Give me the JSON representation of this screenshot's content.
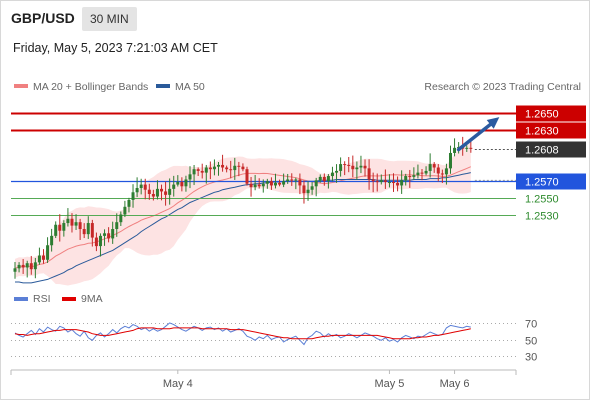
{
  "header": {
    "pair": "GBP/USD",
    "timeframe": "30 MIN",
    "timestamp": "Friday, May 5, 2023 7:21:03 AM CET"
  },
  "credit": "Research © 2023 Trading Central",
  "colors": {
    "resistance": "#cc0000",
    "support_main": "#2255dd",
    "support_minor": "#55aa55",
    "price_label": "#333333",
    "ma20": "#f08080",
    "ma50": "#2a5a9a",
    "bands_fill": "#fde3e3",
    "candle_up": "#2e7d32",
    "candle_down": "#c62828",
    "rsi": "#5b7fd6",
    "rsi_ma": "#e00000",
    "arrow": "#2a5aa0"
  },
  "chart_data": [
    {
      "type": "candlestick",
      "title": "GBP/USD",
      "legend": [
        {
          "name": "MA 20 + Bollinger Bands",
          "color": "#f08080"
        },
        {
          "name": "MA 50",
          "color": "#2a5a9a"
        }
      ],
      "ylim": [
        1.2452,
        1.2665
      ],
      "x_ticks": [
        {
          "label": "May 4",
          "index": 40
        },
        {
          "label": "May 5",
          "index": 92
        },
        {
          "label": "May 6",
          "index": 108
        }
      ],
      "last_price": 1.2608,
      "levels": [
        {
          "value": 1.265,
          "label": "1.2650",
          "kind": "resistance"
        },
        {
          "value": 1.263,
          "label": "1.2630",
          "kind": "resistance"
        },
        {
          "value": 1.2608,
          "label": "1.2608",
          "kind": "price"
        },
        {
          "value": 1.257,
          "label": "1.2570",
          "kind": "support_main"
        },
        {
          "value": 1.255,
          "label": "1.2550",
          "kind": "support_minor"
        },
        {
          "value": 1.253,
          "label": "1.2530",
          "kind": "support_minor"
        }
      ],
      "arrow": {
        "from": [
          109,
          1.2607
        ],
        "to": [
          119,
          1.2645
        ]
      },
      "closes": [
        1.2468,
        1.2472,
        1.2469,
        1.2474,
        1.2467,
        1.2475,
        1.2483,
        1.2478,
        1.2495,
        1.2506,
        1.2519,
        1.2512,
        1.2521,
        1.2526,
        1.2518,
        1.2522,
        1.2514,
        1.2508,
        1.2521,
        1.2504,
        1.2494,
        1.2506,
        1.2509,
        1.2503,
        1.2514,
        1.2522,
        1.2531,
        1.254,
        1.2548,
        1.2557,
        1.2562,
        1.2566,
        1.256,
        1.2555,
        1.2552,
        1.2561,
        1.2558,
        1.2554,
        1.2561,
        1.2566,
        1.2569,
        1.2564,
        1.2572,
        1.2578,
        1.2584,
        1.2582,
        1.258,
        1.2586,
        1.2584,
        1.2587,
        1.2589,
        1.2586,
        1.2584,
        1.2583,
        1.2588,
        1.2587,
        1.2584,
        1.2567,
        1.2563,
        1.2566,
        1.2564,
        1.2567,
        1.257,
        1.2565,
        1.2568,
        1.2566,
        1.257,
        1.2572,
        1.2571,
        1.2572,
        1.2565,
        1.2556,
        1.256,
        1.2564,
        1.2571,
        1.2575,
        1.257,
        1.2576,
        1.258,
        1.2582,
        1.259,
        1.2589,
        1.2588,
        1.2584,
        1.2586,
        1.2588,
        1.2585,
        1.2572,
        1.257,
        1.2569,
        1.2571,
        1.2569,
        1.2569,
        1.2568,
        1.2565,
        1.2571,
        1.2576,
        1.2575,
        1.2577,
        1.258,
        1.2579,
        1.2582,
        1.259,
        1.2586,
        1.2579,
        1.2578,
        1.2585,
        1.2603,
        1.2609,
        1.261,
        1.2608,
        1.2609,
        1.2608
      ],
      "ma50_values": [
        1.2452,
        1.2452,
        1.2451,
        1.2451,
        1.2451,
        1.2452,
        1.2453,
        1.2454,
        1.2455,
        1.2457,
        1.2459,
        1.2461,
        1.2463,
        1.2466,
        1.2468,
        1.2471,
        1.2473,
        1.2475,
        1.2477,
        1.2479,
        1.2481,
        1.2483,
        1.2485,
        1.2487,
        1.2489,
        1.2492,
        1.2495,
        1.2498,
        1.2501,
        1.2504,
        1.2507,
        1.2511,
        1.2514,
        1.2517,
        1.252,
        1.2523,
        1.2526,
        1.2528,
        1.2531,
        1.2534,
        1.2537,
        1.2539,
        1.2542,
        1.2545,
        1.2547,
        1.2549,
        1.2551,
        1.2553,
        1.2555,
        1.2557,
        1.2558,
        1.256,
        1.2561,
        1.2562,
        1.2563,
        1.2564,
        1.2565,
        1.2566,
        1.2566,
        1.2567,
        1.2567,
        1.2568,
        1.2568,
        1.2569,
        1.2569,
        1.2569,
        1.257,
        1.257,
        1.257,
        1.257,
        1.257,
        1.257,
        1.257,
        1.257,
        1.257,
        1.2571,
        1.2571,
        1.2571,
        1.2571,
        1.2572,
        1.2572,
        1.2572,
        1.2572,
        1.2572,
        1.2572,
        1.2572,
        1.2572,
        1.2572,
        1.2572,
        1.2571,
        1.2571,
        1.2571,
        1.2571,
        1.2571,
        1.2571,
        1.2571,
        1.2571,
        1.2571,
        1.2572,
        1.2572,
        1.2572,
        1.2572,
        1.2573,
        1.2573,
        1.2573,
        1.2574,
        1.2574,
        1.2575,
        1.2576,
        1.2577,
        1.2578,
        1.2579,
        1.258
      ]
    },
    {
      "type": "line",
      "title": "",
      "legend": [
        {
          "name": "RSI",
          "color": "#5b7fd6"
        },
        {
          "name": "9MA",
          "color": "#e00000"
        }
      ],
      "ylim": [
        18,
        82
      ],
      "y_ticks": [
        70,
        50,
        30
      ],
      "rsi_values": [
        58,
        55,
        53,
        57,
        61,
        56,
        63,
        59,
        65,
        62,
        60,
        66,
        64,
        59,
        62,
        57,
        54,
        60,
        52,
        49,
        55,
        58,
        53,
        57,
        62,
        58,
        63,
        66,
        64,
        68,
        66,
        62,
        64,
        60,
        63,
        60,
        62,
        66,
        70,
        68,
        65,
        62,
        60,
        63,
        66,
        64,
        61,
        64,
        65,
        62,
        64,
        60,
        63,
        59,
        61,
        63,
        60,
        54,
        52,
        49,
        53,
        51,
        55,
        50,
        52,
        53,
        47,
        50,
        52,
        54,
        49,
        44,
        52,
        55,
        60,
        58,
        53,
        57,
        54,
        56,
        52,
        54,
        57,
        55,
        52,
        55,
        58,
        56,
        54,
        51,
        49,
        52,
        48,
        50,
        47,
        52,
        55,
        53,
        51,
        54,
        53,
        56,
        59,
        57,
        55,
        56,
        64,
        67,
        66,
        65,
        64,
        66,
        65
      ],
      "ma9_values": [
        57,
        56,
        56,
        55,
        56,
        57,
        57,
        58,
        59,
        60,
        61,
        61,
        62,
        62,
        62,
        62,
        61,
        60,
        59,
        57,
        56,
        55,
        55,
        55,
        56,
        57,
        58,
        59,
        60,
        61,
        63,
        64,
        64,
        64,
        64,
        63,
        63,
        63,
        63,
        64,
        64,
        64,
        64,
        64,
        64,
        64,
        63,
        63,
        63,
        63,
        63,
        63,
        63,
        62,
        62,
        62,
        62,
        61,
        60,
        59,
        58,
        57,
        56,
        55,
        54,
        53,
        52,
        52,
        51,
        51,
        51,
        51,
        51,
        51,
        52,
        53,
        54,
        54,
        55,
        55,
        55,
        55,
        55,
        55,
        55,
        55,
        55,
        55,
        55,
        55,
        54,
        53,
        52,
        51,
        51,
        51,
        51,
        51,
        52,
        52,
        53,
        53,
        54,
        55,
        55,
        56,
        57,
        58,
        59,
        60,
        61,
        62,
        63
      ]
    }
  ]
}
